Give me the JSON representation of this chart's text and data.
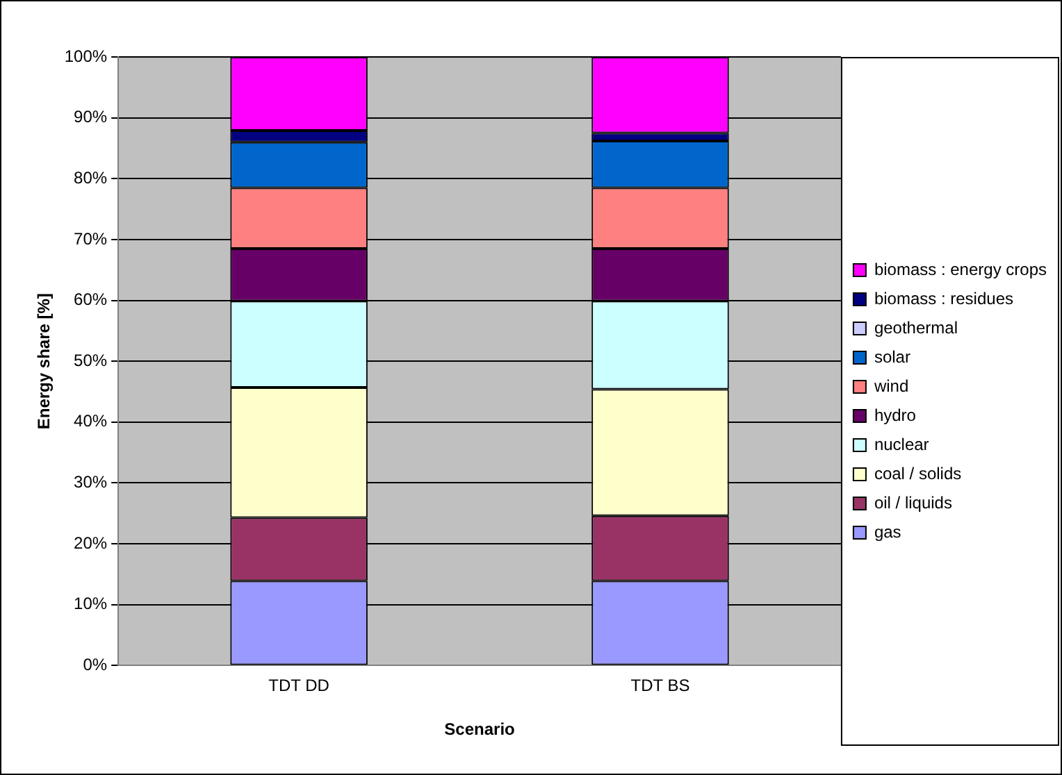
{
  "chart_data": {
    "type": "bar",
    "stacked": true,
    "xlabel": "Scenario",
    "ylabel": "Energy share [%]",
    "categories": [
      "TDT DD",
      "TDT BS"
    ],
    "ylim": [
      0,
      100
    ],
    "yticks": [
      {
        "value": 0,
        "label": "0%"
      },
      {
        "value": 10,
        "label": "10%"
      },
      {
        "value": 20,
        "label": "20%"
      },
      {
        "value": 30,
        "label": "30%"
      },
      {
        "value": 40,
        "label": "40%"
      },
      {
        "value": 50,
        "label": "50%"
      },
      {
        "value": 60,
        "label": "60%"
      },
      {
        "value": 70,
        "label": "70%"
      },
      {
        "value": 80,
        "label": "80%"
      },
      {
        "value": 90,
        "label": "90%"
      },
      {
        "value": 100,
        "label": "100%"
      }
    ],
    "grid": "y",
    "legend": "right",
    "series": [
      {
        "name": "gas",
        "color": "#9999ff",
        "values": [
          13.9,
          13.9
        ]
      },
      {
        "name": "oil / liquids",
        "color": "#993366",
        "values": [
          10.4,
          10.7
        ]
      },
      {
        "name": "coal / solids",
        "color": "#ffffcc",
        "values": [
          21.4,
          20.8
        ]
      },
      {
        "name": "nuclear",
        "color": "#ccffff",
        "values": [
          14.2,
          14.5
        ]
      },
      {
        "name": "hydro",
        "color": "#660066",
        "values": [
          8.6,
          8.6
        ]
      },
      {
        "name": "wind",
        "color": "#ff8080",
        "values": [
          10,
          10
        ]
      },
      {
        "name": "solar",
        "color": "#0066cc",
        "values": [
          7.5,
          7.7
        ]
      },
      {
        "name": "geothermal",
        "color": "#ccccff",
        "values": [
          0,
          0
        ]
      },
      {
        "name": "biomass : residues",
        "color": "#000080",
        "values": [
          1.9,
          1.3
        ]
      },
      {
        "name": "biomass : energy crops",
        "color": "#ff00ff",
        "values": [
          12.1,
          12.5
        ]
      }
    ]
  }
}
